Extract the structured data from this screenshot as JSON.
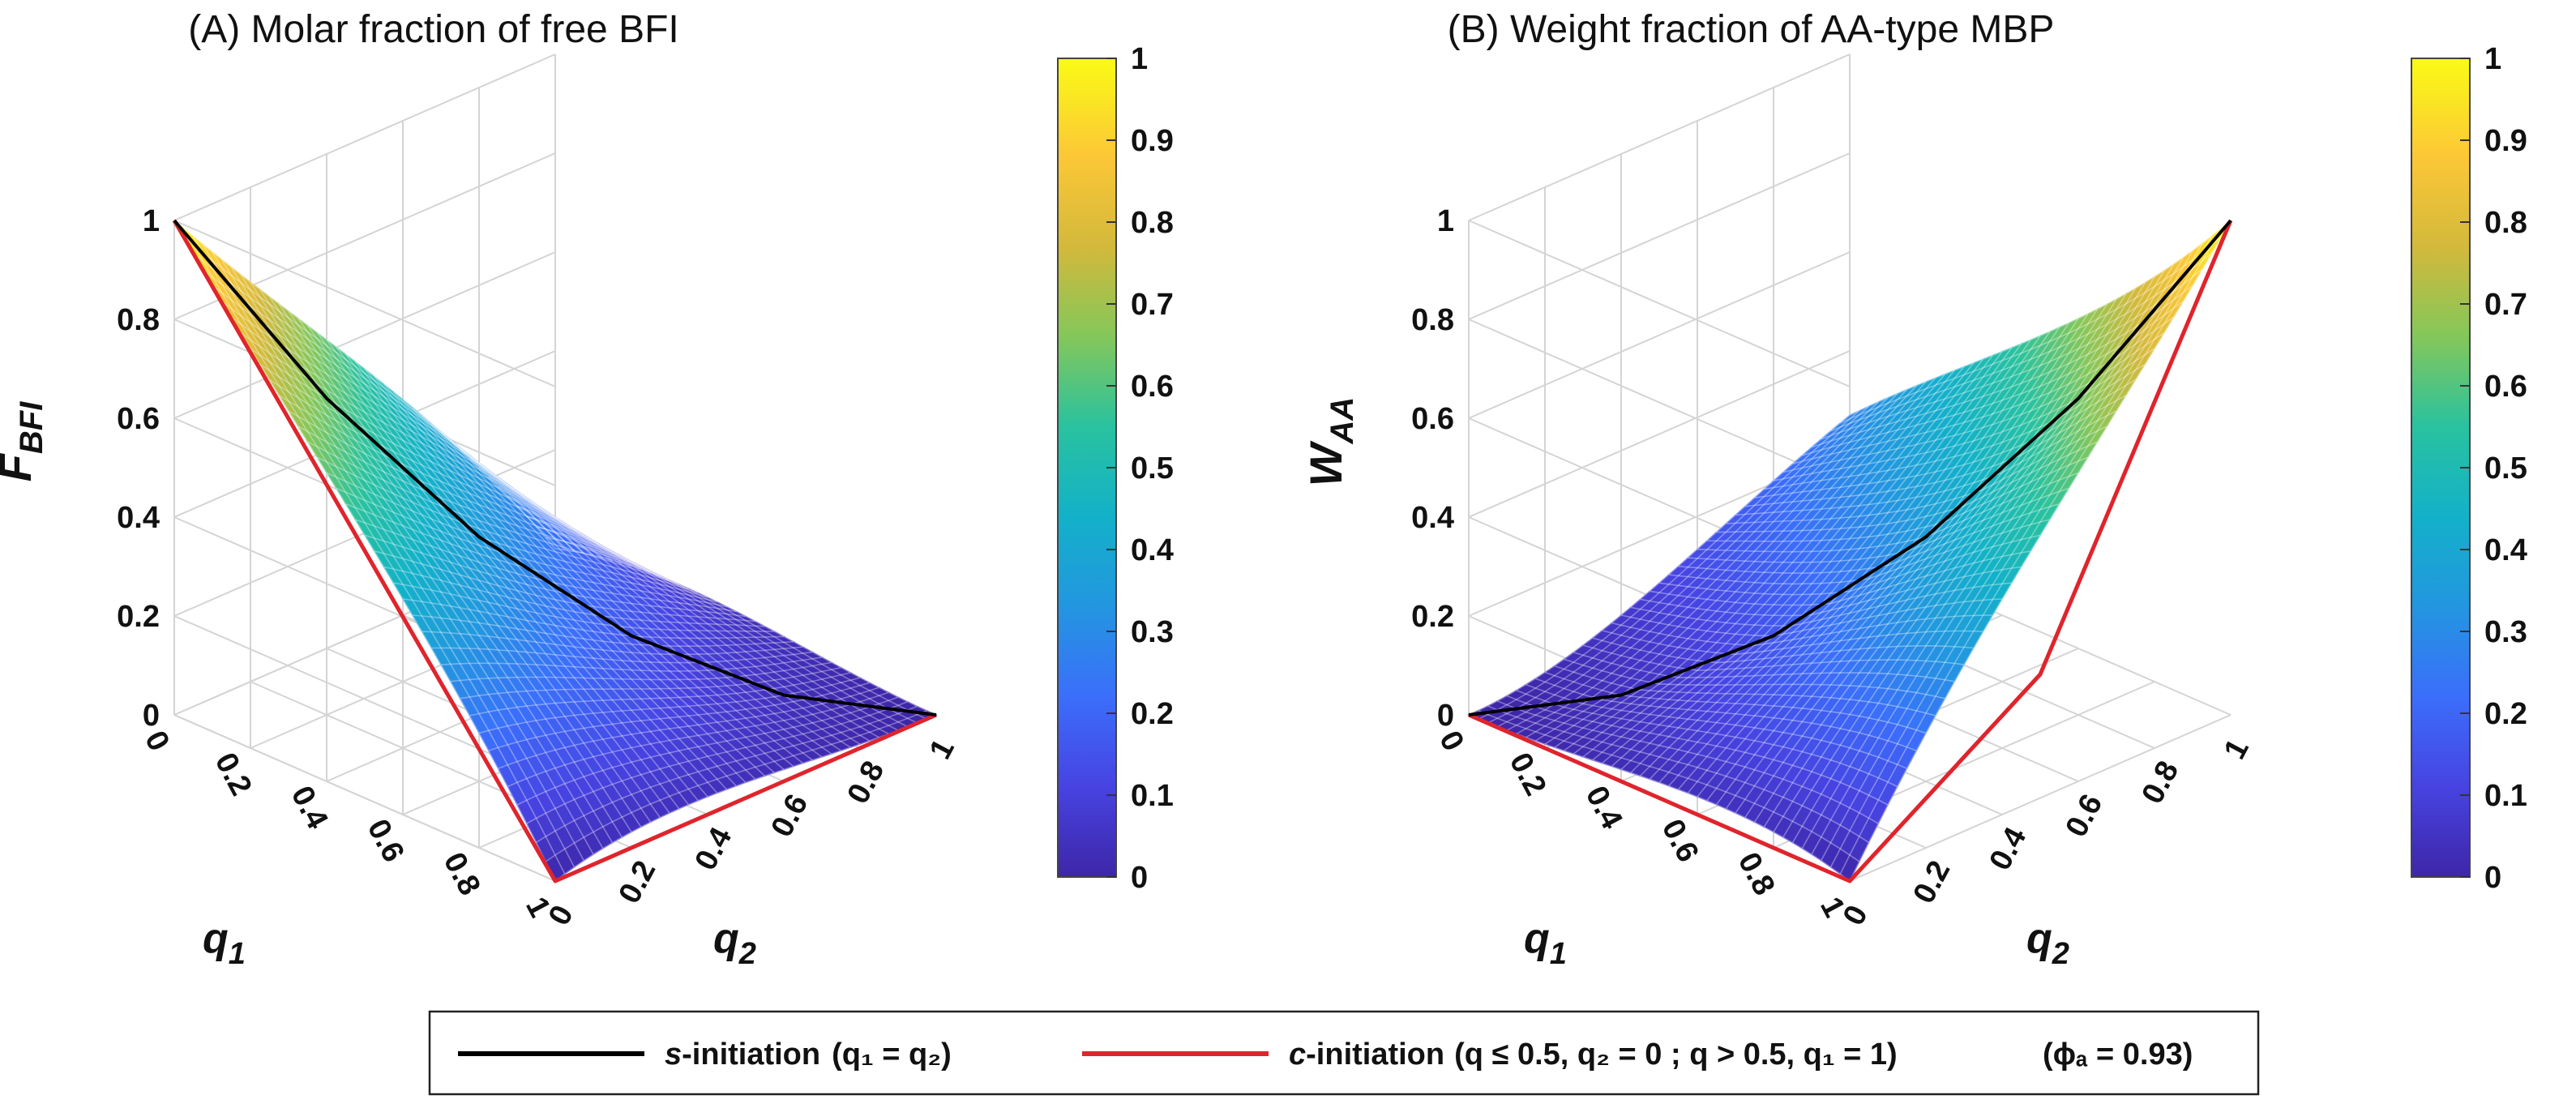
{
  "chart_data": [
    {
      "type": "surface3d",
      "title": "(A) Molar fraction of free BFI",
      "zlabel_main": "F",
      "zlabel_sub": "BFI",
      "xlabel_main": "q",
      "xlabel_sub": "1",
      "ylabel_main": "q",
      "ylabel_sub": "2",
      "xlim": [
        0,
        1
      ],
      "ylim": [
        0,
        1
      ],
      "zlim": [
        0,
        1
      ],
      "z_ticks": [
        "0",
        "0.2",
        "0.4",
        "0.6",
        "0.8",
        "1"
      ],
      "q1_ticks": [
        "0",
        "0.2",
        "0.4",
        "0.6",
        "0.8",
        "1"
      ],
      "q2_ticks": [
        "0",
        "0.2",
        "0.4",
        "0.6",
        "0.8",
        "1"
      ],
      "corner_values": {
        "q1_0_q2_0": 1,
        "q1_1_q2_0": 0,
        "q1_0_q2_1": 0,
        "q1_1_q2_1": 0
      },
      "s_initiation_curve": {
        "q": [
          0,
          0.2,
          0.4,
          0.6,
          0.8,
          1
        ],
        "value": [
          1,
          0.64,
          0.36,
          0.16,
          0.04,
          0
        ]
      },
      "c_initiation_curve": {
        "q1": [
          0,
          0.5,
          1,
          1,
          1
        ],
        "q2": [
          0,
          0,
          0,
          0.5,
          1
        ],
        "value": [
          1,
          0.5,
          0,
          0,
          0
        ]
      },
      "colorbar": {
        "min": 0,
        "max": 1,
        "ticks": [
          "0",
          "0.1",
          "0.2",
          "0.3",
          "0.4",
          "0.5",
          "0.6",
          "0.7",
          "0.8",
          "0.9",
          "1"
        ]
      }
    },
    {
      "type": "surface3d",
      "title": "(B) Weight fraction of AA-type MBP",
      "zlabel_main": "W",
      "zlabel_sub": "AA",
      "xlabel_main": "q",
      "xlabel_sub": "1",
      "ylabel_main": "q",
      "ylabel_sub": "2",
      "xlim": [
        0,
        1
      ],
      "ylim": [
        0,
        1
      ],
      "zlim": [
        0,
        1
      ],
      "z_ticks": [
        "0",
        "0.2",
        "0.4",
        "0.6",
        "0.8",
        "1"
      ],
      "q1_ticks": [
        "0",
        "0.2",
        "0.4",
        "0.6",
        "0.8",
        "1"
      ],
      "q2_ticks": [
        "0",
        "0.2",
        "0.4",
        "0.6",
        "0.8",
        "1"
      ],
      "corner_values": {
        "q1_0_q2_0": 0,
        "q1_1_q2_0": 0,
        "q1_0_q2_1": 0.27,
        "q1_1_q2_1": 1
      },
      "s_initiation_curve": {
        "q": [
          0,
          0.2,
          0.4,
          0.6,
          0.8,
          1
        ],
        "value": [
          0,
          0.04,
          0.16,
          0.36,
          0.64,
          1
        ]
      },
      "c_initiation_curve": {
        "q1": [
          0,
          0.5,
          1,
          1,
          1
        ],
        "q2": [
          0,
          0,
          0,
          0.5,
          1
        ],
        "value": [
          0,
          0,
          0,
          0.25,
          1
        ]
      },
      "colorbar": {
        "min": 0,
        "max": 1,
        "ticks": [
          "0",
          "0.1",
          "0.2",
          "0.3",
          "0.4",
          "0.5",
          "0.6",
          "0.7",
          "0.8",
          "0.9",
          "1"
        ]
      }
    }
  ],
  "legend": {
    "s_label_italic": "s",
    "s_label_rest": "-initiation",
    "s_condition": "(q₁ = q₂)",
    "c_label_italic": "c",
    "c_label_rest": "-initiation",
    "c_condition": "(q ≤ 0.5, q₂ = 0 ; q > 0.5, q₁ = 1)",
    "phi_text": "(ϕₐ = 0.93)",
    "s_color": "#000000",
    "c_color": "#e0242c"
  },
  "colors": {
    "colormap": [
      "#3e26a8",
      "#4743e1",
      "#3b6efb",
      "#2396e0",
      "#13b1c9",
      "#29c29f",
      "#84c75a",
      "#d3b93b",
      "#fcc737",
      "#f9fb15"
    ],
    "grid": "#d4d4d4"
  }
}
